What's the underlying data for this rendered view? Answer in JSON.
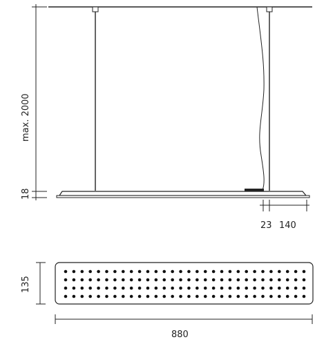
{
  "side_view": {
    "dim_height_label": "max. 2000",
    "dim_thickness_label": "18",
    "dim_offset_label": "23",
    "dim_width_label": "140"
  },
  "top_view": {
    "dim_depth_label": "135",
    "dim_length_label": "880",
    "led_rows": 4,
    "leds_per_row": 30
  },
  "colors": {
    "line": "#222222",
    "panel_fill": "#ffffff",
    "led": "#111111"
  }
}
